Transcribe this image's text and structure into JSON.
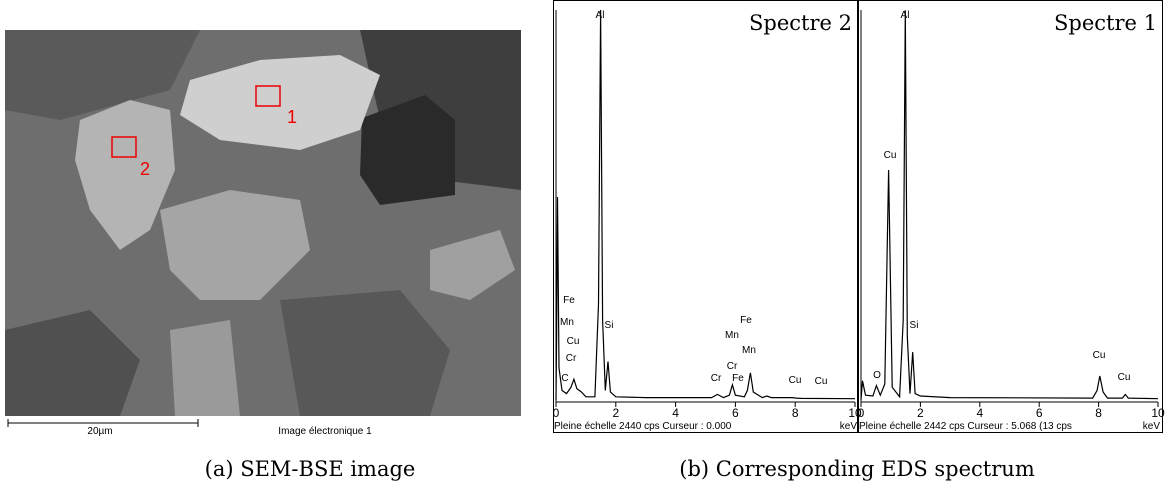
{
  "sem_image": {
    "regions": [
      "1",
      "2"
    ],
    "scale_bar": "20µm",
    "footer": "Image électronique 1"
  },
  "chart_data": [
    {
      "type": "line",
      "title": "Spectre 2",
      "xlabel": "keV",
      "footer": "Pleine échelle 2440 cps  Curseur : 0.000",
      "xlim": [
        0,
        10
      ],
      "xticks": [
        0,
        2,
        4,
        6,
        8,
        10
      ],
      "ylim": [
        0,
        2440
      ],
      "color": "#000000",
      "x": [
        0,
        0.02,
        0.05,
        0.1,
        0.2,
        0.35,
        0.5,
        0.6,
        0.7,
        0.85,
        1.0,
        1.3,
        1.42,
        1.49,
        1.56,
        1.65,
        1.74,
        1.82,
        2.0,
        3.0,
        5.2,
        5.4,
        5.6,
        5.8,
        5.9,
        6.0,
        6.3,
        6.4,
        6.5,
        6.6,
        6.9,
        7.05,
        7.2,
        7.9,
        8.04,
        8.2,
        10
      ],
      "values": [
        0,
        400,
        1270,
        200,
        60,
        40,
        80,
        130,
        70,
        50,
        20,
        20,
        600,
        2440,
        500,
        60,
        240,
        50,
        20,
        15,
        15,
        35,
        15,
        30,
        95,
        30,
        20,
        60,
        170,
        50,
        15,
        25,
        15,
        15,
        12,
        10,
        8
      ],
      "annotations": [
        "Al",
        "Fe",
        "Mn",
        "Cu",
        "Cr",
        "C",
        "Si",
        "Fe",
        "Mn",
        "Mn",
        "Cr",
        "Cr",
        "Fe",
        "Cu",
        "Cu"
      ]
    },
    {
      "type": "line",
      "title": "Spectre 1",
      "xlabel": "keV",
      "footer": "Pleine échelle 2442 cps  Curseur : 5.068  (13 cps",
      "xlim": [
        0,
        10
      ],
      "xticks": [
        0,
        2,
        4,
        6,
        8,
        10
      ],
      "ylim": [
        0,
        2442
      ],
      "color": "#000000",
      "x": [
        0,
        0.05,
        0.15,
        0.4,
        0.52,
        0.65,
        0.8,
        0.93,
        1.05,
        1.3,
        1.42,
        1.49,
        1.56,
        1.65,
        1.74,
        1.82,
        2.0,
        3.0,
        7.8,
        7.95,
        8.04,
        8.15,
        8.3,
        8.8,
        8.9,
        9.0,
        10
      ],
      "values": [
        0,
        120,
        30,
        25,
        90,
        30,
        100,
        1440,
        80,
        20,
        500,
        2440,
        400,
        40,
        300,
        40,
        25,
        15,
        12,
        60,
        150,
        50,
        12,
        12,
        35,
        12,
        8
      ],
      "annotations": [
        "Al",
        "Cu",
        "Si",
        "O",
        "Cu",
        "Cu"
      ]
    }
  ],
  "captions": [
    "(a) SEM-BSE image",
    "(b) Corresponding EDS spectrum"
  ]
}
